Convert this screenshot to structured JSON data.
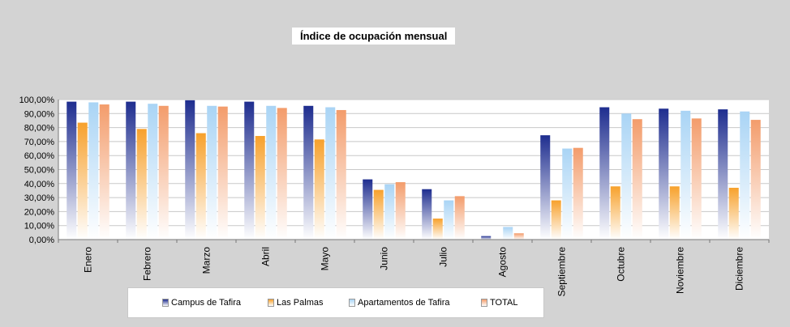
{
  "chart_data": {
    "type": "bar",
    "title": "Índice de ocupación mensual",
    "xlabel": "",
    "ylabel": "",
    "ylim": [
      0,
      100
    ],
    "yticks": [
      "0,00%",
      "10,00%",
      "20,00%",
      "30,00%",
      "40,00%",
      "50,00%",
      "60,00%",
      "70,00%",
      "80,00%",
      "90,00%",
      "100,00%"
    ],
    "grid": true,
    "legend_position": "bottom",
    "categories": [
      "Enero",
      "Febrero",
      "Marzo",
      "Abril",
      "Mayo",
      "Junio",
      "Julio",
      "Agosto",
      "Septiembre",
      "Octubre",
      "Noviembre",
      "Diciembre"
    ],
    "series": [
      {
        "name": "Campus de Tafira",
        "color": "#1e2d8f",
        "values": [
          98.5,
          98.5,
          99.5,
          98.5,
          95.5,
          43,
          36,
          2.5,
          74.5,
          94.5,
          93.5,
          93
        ]
      },
      {
        "name": "Las Palmas",
        "color": "#f7a12c",
        "values": [
          83.5,
          79,
          76,
          74,
          71.5,
          35.5,
          15,
          0,
          28,
          38,
          38,
          37
        ]
      },
      {
        "name": "Apartamentos de Tafira",
        "color": "#a9d4f5",
        "values": [
          98,
          97,
          95.5,
          95.5,
          94.5,
          39.5,
          28,
          9,
          65,
          90,
          92,
          91.5
        ]
      },
      {
        "name": "TOTAL",
        "color": "#f39c6b",
        "values": [
          96.5,
          95.5,
          95,
          94,
          92.5,
          41,
          31,
          4.5,
          65.5,
          86,
          86.5,
          85.5
        ]
      }
    ]
  }
}
